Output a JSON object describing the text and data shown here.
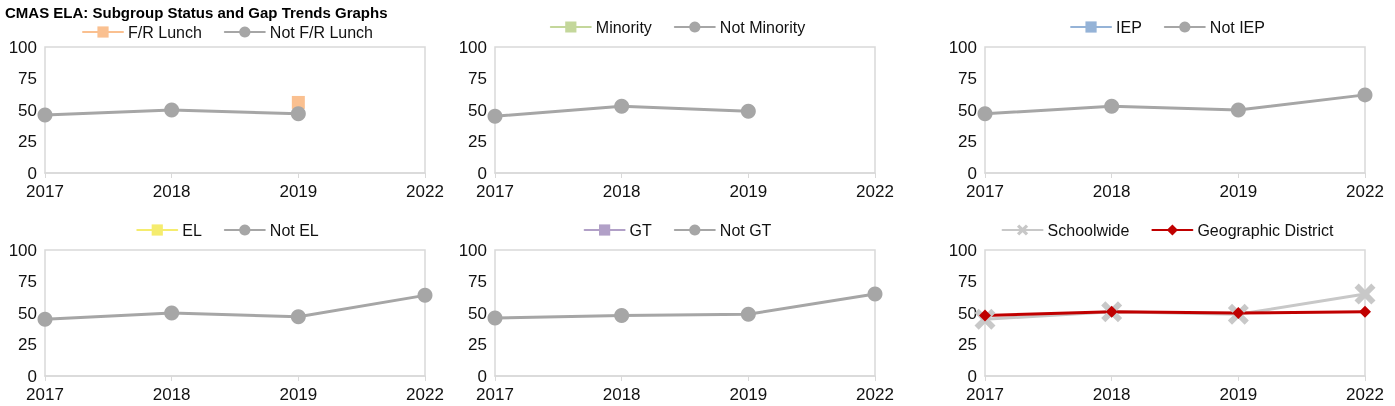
{
  "chart_data": [
    {
      "type": "line",
      "title": "CMAS ELA: Subgroup Status and Gap Trends Graphs",
      "categories": [
        "2017",
        "2018",
        "2019",
        "2022"
      ],
      "ylim": [
        0,
        100
      ],
      "yticks": [
        0,
        25,
        50,
        75,
        100
      ],
      "legend": "top",
      "series": [
        {
          "name": "F/R Lunch",
          "color": "#fac090",
          "marker": "square",
          "values": [
            null,
            null,
            56,
            null
          ]
        },
        {
          "name": "Not F/R Lunch",
          "color": "#a6a6a6",
          "marker": "circle",
          "values": [
            46,
            50,
            47,
            null
          ]
        }
      ]
    },
    {
      "type": "line",
      "categories": [
        "2017",
        "2018",
        "2019",
        "2022"
      ],
      "ylim": [
        0,
        100
      ],
      "yticks": [
        0,
        25,
        50,
        75,
        100
      ],
      "legend": "top",
      "series": [
        {
          "name": "Minority",
          "color": "#c4d79b",
          "marker": "square",
          "values": [
            null,
            null,
            null,
            null
          ]
        },
        {
          "name": "Not Minority",
          "color": "#a6a6a6",
          "marker": "circle",
          "values": [
            45,
            53,
            49,
            null
          ]
        }
      ]
    },
    {
      "type": "line",
      "categories": [
        "2017",
        "2018",
        "2019",
        "2022"
      ],
      "ylim": [
        0,
        100
      ],
      "yticks": [
        0,
        25,
        50,
        75,
        100
      ],
      "legend": "top",
      "series": [
        {
          "name": "IEP",
          "color": "#95b3d7",
          "marker": "square",
          "values": [
            null,
            null,
            null,
            null
          ]
        },
        {
          "name": "Not IEP",
          "color": "#a6a6a6",
          "marker": "circle",
          "values": [
            47,
            53,
            50,
            62
          ]
        }
      ]
    },
    {
      "type": "line",
      "categories": [
        "2017",
        "2018",
        "2019",
        "2022"
      ],
      "ylim": [
        0,
        100
      ],
      "yticks": [
        0,
        25,
        50,
        75,
        100
      ],
      "legend": "top",
      "series": [
        {
          "name": "EL",
          "color": "#f5ec6e",
          "marker": "square",
          "values": [
            null,
            null,
            null,
            null
          ]
        },
        {
          "name": "Not EL",
          "color": "#a6a6a6",
          "marker": "circle",
          "values": [
            45,
            50,
            47,
            64
          ]
        }
      ]
    },
    {
      "type": "line",
      "categories": [
        "2017",
        "2018",
        "2019",
        "2022"
      ],
      "ylim": [
        0,
        100
      ],
      "yticks": [
        0,
        25,
        50,
        75,
        100
      ],
      "legend": "top",
      "series": [
        {
          "name": "GT",
          "color": "#b1a0c7",
          "marker": "square",
          "values": [
            null,
            null,
            null,
            null
          ]
        },
        {
          "name": "Not GT",
          "color": "#a6a6a6",
          "marker": "circle",
          "values": [
            46,
            48,
            49,
            65
          ]
        }
      ]
    },
    {
      "type": "line",
      "categories": [
        "2017",
        "2018",
        "2019",
        "2022"
      ],
      "ylim": [
        0,
        100
      ],
      "yticks": [
        0,
        25,
        50,
        75,
        100
      ],
      "legend": "top",
      "series": [
        {
          "name": "Schoolwide",
          "color": "#c8c8c8",
          "marker": "cross",
          "values": [
            45,
            51,
            49,
            65
          ]
        },
        {
          "name": "Geographic District",
          "color": "#c00000",
          "marker": "diamond",
          "values": [
            48,
            51,
            50,
            51
          ]
        }
      ]
    }
  ]
}
